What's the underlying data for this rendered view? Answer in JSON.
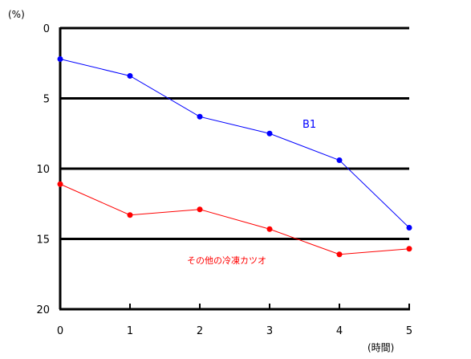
{
  "chart_data": {
    "type": "line",
    "title": "",
    "ylabel": "(%)",
    "xlabel": "(時間)",
    "y_inverted": true,
    "ylim": [
      0,
      20
    ],
    "xlim": [
      0,
      5
    ],
    "yticks": [
      "0",
      "5",
      "10",
      "15",
      "20"
    ],
    "xticks": [
      "0",
      "1",
      "2",
      "3",
      "4",
      "5"
    ],
    "grid": "horizontal",
    "x": [
      0,
      1,
      2,
      3,
      4,
      5
    ],
    "series": [
      {
        "name": "B1",
        "color": "#0000ff",
        "values": [
          2.2,
          3.4,
          6.3,
          7.5,
          9.4,
          14.2
        ]
      },
      {
        "name": "その他の冷凍カツオ",
        "color": "#ff0000",
        "values": [
          11.1,
          13.3,
          12.9,
          14.3,
          16.1,
          15.7
        ]
      }
    ]
  }
}
